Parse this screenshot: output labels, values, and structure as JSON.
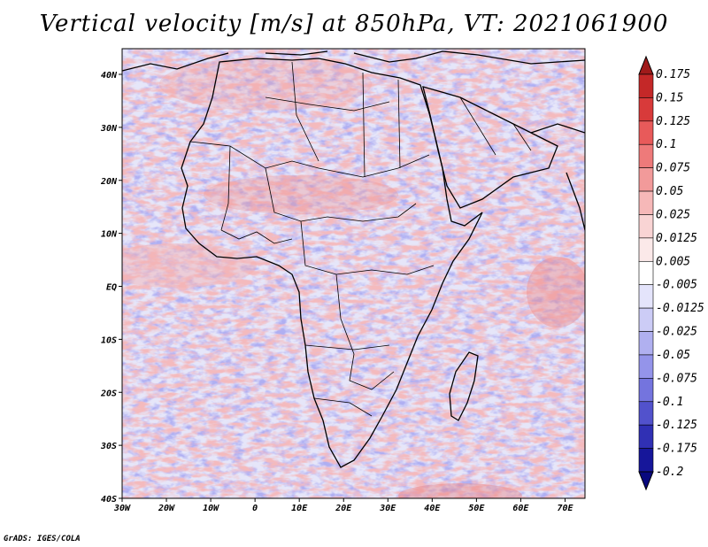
{
  "title": "Vertical velocity [m/s] at 850hPa, VT: 2021061900",
  "credit": "GrADS: IGES/COLA",
  "axes": {
    "x_ticks": [
      "30W",
      "20W",
      "10W",
      "0",
      "10E",
      "20E",
      "30E",
      "40E",
      "50E",
      "60E",
      "70E"
    ],
    "y_ticks": [
      "40N",
      "30N",
      "20N",
      "10N",
      "EQ",
      "10S",
      "20S",
      "30S",
      "40S"
    ]
  },
  "colorbar": {
    "labels": [
      "0.175",
      "0.15",
      "0.125",
      "0.1",
      "0.075",
      "0.05",
      "0.025",
      "0.0125",
      "0.005",
      "-0.005",
      "-0.0125",
      "-0.025",
      "-0.05",
      "-0.075",
      "-0.1",
      "-0.125",
      "-0.175",
      "-0.2"
    ],
    "colors": [
      "#a01a1a",
      "#c42828",
      "#d83a3a",
      "#e85a5a",
      "#ee7a7a",
      "#f29a9a",
      "#f6b8b8",
      "#f9d4d4",
      "#fbe9e9",
      "#ffffff",
      "#e4e4fb",
      "#ccccf6",
      "#b0b0f0",
      "#9494ea",
      "#7474de",
      "#5252cc",
      "#3030b4",
      "#16169a",
      "#08087e"
    ]
  },
  "colors": {
    "ocean_base": "#d9d9f6",
    "land_base": "#c9c6f2",
    "positive": "#f08080",
    "negative": "#6e6ee0",
    "coastline": "#000000"
  }
}
